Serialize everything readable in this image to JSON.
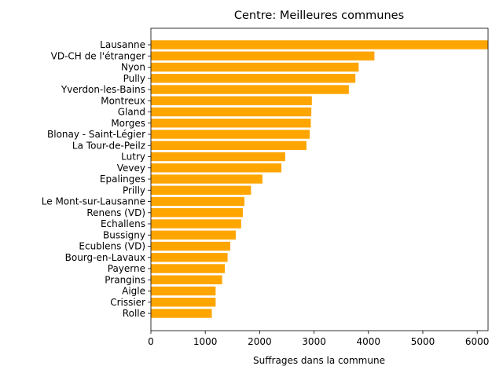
{
  "chart_data": {
    "type": "bar",
    "orientation": "horizontal",
    "title": "Centre: Meilleures communes",
    "xlabel": "Suffrages dans la commune",
    "ylabel": "",
    "xlim": [
      0,
      6200
    ],
    "xticks": [
      0,
      1000,
      2000,
      3000,
      4000,
      5000,
      6000
    ],
    "bar_color": "#ffa500",
    "grid": false,
    "categories": [
      "Lausanne",
      "VD-CH de l'étranger",
      "Nyon",
      "Pully",
      "Yverdon-les-Bains",
      "Montreux",
      "Gland",
      "Morges",
      "Blonay - Saint-Légier",
      "La Tour-de-Peilz",
      "Lutry",
      "Vevey",
      "Epalinges",
      "Prilly",
      "Le Mont-sur-Lausanne",
      "Renens (VD)",
      "Echallens",
      "Bussigny",
      "Ecublens (VD)",
      "Bourg-en-Lavaux",
      "Payerne",
      "Prangins",
      "Aigle",
      "Crissier",
      "Rolle"
    ],
    "values": [
      6200,
      4110,
      3820,
      3760,
      3640,
      2960,
      2950,
      2940,
      2920,
      2860,
      2470,
      2400,
      2050,
      1840,
      1720,
      1690,
      1660,
      1560,
      1460,
      1410,
      1360,
      1310,
      1190,
      1190,
      1120
    ]
  }
}
